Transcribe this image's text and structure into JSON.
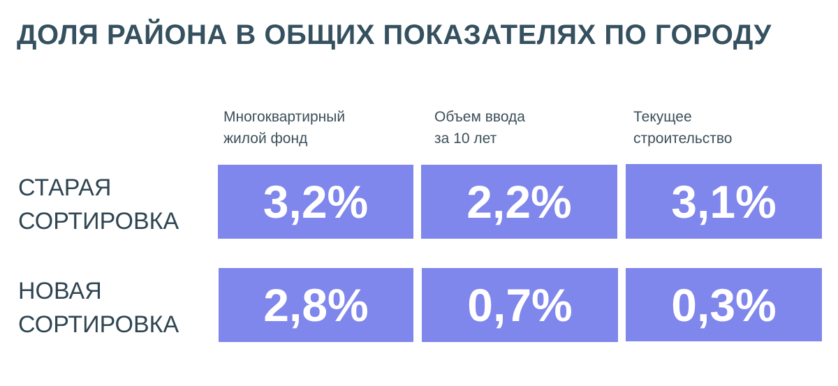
{
  "title": "ДОЛЯ РАЙОНА В ОБЩИХ ПОКАЗАТЕЛЯХ ПО ГОРОДУ",
  "columns": [
    "Многоквартирный\nжилой фонд",
    "Объем ввода\nза 10 лет",
    "Текущее\nстроительство"
  ],
  "rows": [
    {
      "label": "СТАРАЯ\nСОРТИРОВКА",
      "values": [
        "3,2%",
        "2,2%",
        "3,1%"
      ]
    },
    {
      "label": "НОВАЯ\nСОРТИРОВКА",
      "values": [
        "2,8%",
        "0,7%",
        "0,3%"
      ]
    }
  ],
  "colors": {
    "title": "#35505e",
    "cell_background": "#7f86ec",
    "cell_text": "#ffffff"
  }
}
